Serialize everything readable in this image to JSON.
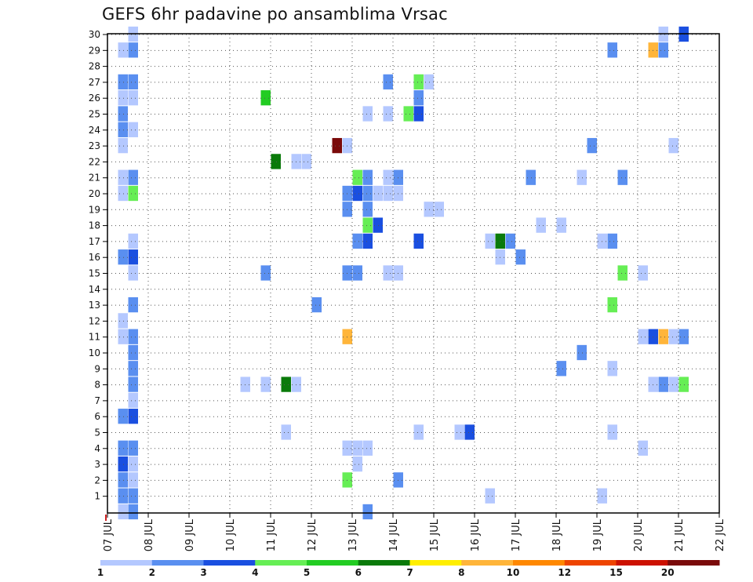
{
  "chart_data": {
    "type": "heatmap",
    "title": "GEFS 6hr padavine po ansamblima Vrsac",
    "xlabel": "",
    "ylabel": "",
    "x_ticks": [
      "07 JUL",
      "08 JUL",
      "09 JUL",
      "10 JUL",
      "11 JUL",
      "12 JUL",
      "13 JUL",
      "14 JUL",
      "15 JUL",
      "16 JUL",
      "17 JUL",
      "18 JUL",
      "19 JUL",
      "20 JUL",
      "21 JUL",
      "22 JUL"
    ],
    "y_ticks": [
      "1",
      "2",
      "3",
      "4",
      "5",
      "6",
      "7",
      "8",
      "9",
      "10",
      "11",
      "12",
      "13",
      "14",
      "15",
      "16",
      "17",
      "18",
      "19",
      "20",
      "21",
      "22",
      "23",
      "24",
      "25",
      "26",
      "27",
      "28",
      "29",
      "30"
    ],
    "x_unit": "days since 07 JUL, 6-hourly",
    "y_range": [
      0,
      30
    ],
    "grid": true,
    "legend": {
      "placement": "bottom",
      "levels": [
        "1",
        "2",
        "3",
        "4",
        "5",
        "6",
        "7",
        "8",
        "10",
        "12",
        "15",
        "20"
      ],
      "colors": [
        "#b4c8ff",
        "#5a8ff0",
        "#1a4fe0",
        "#66ee55",
        "#22cc22",
        "#0a7a0a",
        "#ffee00",
        "#ffb53a",
        "#ff8800",
        "#ee4400",
        "#cc1100",
        "#7a0a0a"
      ]
    },
    "cells": [
      [
        0.25,
        0,
        "#b4c8ff"
      ],
      [
        0.5,
        0,
        "#5a8ff0"
      ],
      [
        0.25,
        1,
        "#5a8ff0"
      ],
      [
        0.5,
        1,
        "#5a8ff0"
      ],
      [
        0.25,
        2,
        "#5a8ff0"
      ],
      [
        0.5,
        2,
        "#b4c8ff"
      ],
      [
        0.25,
        3,
        "#1a4fe0"
      ],
      [
        0.5,
        3,
        "#b4c8ff"
      ],
      [
        0.25,
        4,
        "#5a8ff0"
      ],
      [
        0.5,
        4,
        "#5a8ff0"
      ],
      [
        0.25,
        6,
        "#5a8ff0"
      ],
      [
        0.5,
        6,
        "#1a4fe0"
      ],
      [
        0.5,
        7,
        "#b4c8ff"
      ],
      [
        0.5,
        8,
        "#5a8ff0"
      ],
      [
        0.5,
        9,
        "#5a8ff0"
      ],
      [
        0.5,
        10,
        "#5a8ff0"
      ],
      [
        0.25,
        11,
        "#b4c8ff"
      ],
      [
        0.5,
        11,
        "#5a8ff0"
      ],
      [
        0.25,
        12,
        "#b4c8ff"
      ],
      [
        0.5,
        13,
        "#5a8ff0"
      ],
      [
        0.5,
        15,
        "#b4c8ff"
      ],
      [
        0.25,
        16,
        "#5a8ff0"
      ],
      [
        0.5,
        16,
        "#1a4fe0"
      ],
      [
        0.5,
        17,
        "#b4c8ff"
      ],
      [
        0.25,
        20,
        "#b4c8ff"
      ],
      [
        0.5,
        20,
        "#66ee55"
      ],
      [
        0.25,
        21,
        "#b4c8ff"
      ],
      [
        0.5,
        21,
        "#5a8ff0"
      ],
      [
        0.25,
        23,
        "#b4c8ff"
      ],
      [
        0.25,
        24,
        "#5a8ff0"
      ],
      [
        0.5,
        24,
        "#b4c8ff"
      ],
      [
        0.25,
        25,
        "#5a8ff0"
      ],
      [
        0.25,
        26,
        "#b4c8ff"
      ],
      [
        0.5,
        26,
        "#b4c8ff"
      ],
      [
        0.25,
        27,
        "#5a8ff0"
      ],
      [
        0.5,
        27,
        "#5a8ff0"
      ],
      [
        0.25,
        29,
        "#b4c8ff"
      ],
      [
        0.5,
        29,
        "#5a8ff0"
      ],
      [
        0.5,
        30,
        "#b4c8ff"
      ],
      [
        3.25,
        8,
        "#b4c8ff"
      ],
      [
        3.75,
        8,
        "#b4c8ff"
      ],
      [
        3.75,
        26,
        "#22cc22"
      ],
      [
        3.75,
        15,
        "#5a8ff0"
      ],
      [
        4.0,
        22,
        "#0a7a0a"
      ],
      [
        4.25,
        5,
        "#b4c8ff"
      ],
      [
        4.25,
        8,
        "#0a7a0a"
      ],
      [
        4.5,
        8,
        "#b4c8ff"
      ],
      [
        4.5,
        22,
        "#b4c8ff"
      ],
      [
        4.75,
        22,
        "#b4c8ff"
      ],
      [
        5.0,
        13,
        "#5a8ff0"
      ],
      [
        5.5,
        23,
        "#7a0a0a"
      ],
      [
        5.75,
        23,
        "#b4c8ff"
      ],
      [
        5.75,
        2,
        "#66ee55"
      ],
      [
        5.75,
        4,
        "#b4c8ff"
      ],
      [
        5.75,
        11,
        "#ffb53a"
      ],
      [
        5.75,
        15,
        "#5a8ff0"
      ],
      [
        6.0,
        15,
        "#5a8ff0"
      ],
      [
        5.75,
        19,
        "#5a8ff0"
      ],
      [
        5.75,
        20,
        "#5a8ff0"
      ],
      [
        6.0,
        20,
        "#1a4fe0"
      ],
      [
        6.0,
        21,
        "#66ee55"
      ],
      [
        6.25,
        21,
        "#5a8ff0"
      ],
      [
        6.0,
        17,
        "#5a8ff0"
      ],
      [
        6.25,
        17,
        "#1a4fe0"
      ],
      [
        6.25,
        18,
        "#66ee55"
      ],
      [
        6.5,
        18,
        "#1a4fe0"
      ],
      [
        6.25,
        19,
        "#5a8ff0"
      ],
      [
        6.25,
        20,
        "#5a8ff0"
      ],
      [
        6.5,
        20,
        "#b4c8ff"
      ],
      [
        6.0,
        3,
        "#b4c8ff"
      ],
      [
        6.0,
        4,
        "#b4c8ff"
      ],
      [
        6.25,
        4,
        "#b4c8ff"
      ],
      [
        6.25,
        0,
        "#5a8ff0"
      ],
      [
        6.25,
        25,
        "#b4c8ff"
      ],
      [
        6.75,
        25,
        "#b4c8ff"
      ],
      [
        6.75,
        27,
        "#5a8ff0"
      ],
      [
        6.75,
        15,
        "#b4c8ff"
      ],
      [
        7.0,
        15,
        "#b4c8ff"
      ],
      [
        6.75,
        20,
        "#b4c8ff"
      ],
      [
        7.0,
        20,
        "#b4c8ff"
      ],
      [
        6.75,
        21,
        "#b4c8ff"
      ],
      [
        7.0,
        21,
        "#5a8ff0"
      ],
      [
        7.0,
        2,
        "#5a8ff0"
      ],
      [
        7.5,
        5,
        "#b4c8ff"
      ],
      [
        7.5,
        27,
        "#66ee55"
      ],
      [
        7.75,
        27,
        "#b4c8ff"
      ],
      [
        7.5,
        26,
        "#5a8ff0"
      ],
      [
        7.25,
        25,
        "#66ee55"
      ],
      [
        7.5,
        25,
        "#1a4fe0"
      ],
      [
        7.5,
        17,
        "#1a4fe0"
      ],
      [
        7.75,
        19,
        "#b4c8ff"
      ],
      [
        8.0,
        19,
        "#b4c8ff"
      ],
      [
        8.5,
        5,
        "#b4c8ff"
      ],
      [
        8.75,
        5,
        "#1a4fe0"
      ],
      [
        9.25,
        1,
        "#b4c8ff"
      ],
      [
        9.25,
        17,
        "#b4c8ff"
      ],
      [
        9.5,
        16,
        "#b4c8ff"
      ],
      [
        9.5,
        17,
        "#0a7a0a"
      ],
      [
        9.75,
        17,
        "#5a8ff0"
      ],
      [
        10.0,
        16,
        "#5a8ff0"
      ],
      [
        10.25,
        21,
        "#5a8ff0"
      ],
      [
        10.5,
        18,
        "#b4c8ff"
      ],
      [
        11.0,
        18,
        "#b4c8ff"
      ],
      [
        11.0,
        9,
        "#5a8ff0"
      ],
      [
        11.5,
        10,
        "#5a8ff0"
      ],
      [
        11.5,
        21,
        "#b4c8ff"
      ],
      [
        11.75,
        23,
        "#5a8ff0"
      ],
      [
        12.0,
        1,
        "#b4c8ff"
      ],
      [
        12.0,
        17,
        "#b4c8ff"
      ],
      [
        12.25,
        17,
        "#5a8ff0"
      ],
      [
        12.25,
        5,
        "#b4c8ff"
      ],
      [
        12.25,
        9,
        "#b4c8ff"
      ],
      [
        12.25,
        13,
        "#66ee55"
      ],
      [
        12.25,
        29,
        "#5a8ff0"
      ],
      [
        12.5,
        21,
        "#5a8ff0"
      ],
      [
        12.5,
        15,
        "#66ee55"
      ],
      [
        13.0,
        15,
        "#b4c8ff"
      ],
      [
        13.0,
        4,
        "#b4c8ff"
      ],
      [
        13.0,
        11,
        "#b4c8ff"
      ],
      [
        13.25,
        11,
        "#1a4fe0"
      ],
      [
        13.5,
        11,
        "#ffb53a"
      ],
      [
        13.75,
        11,
        "#b4c8ff"
      ],
      [
        14.0,
        11,
        "#5a8ff0"
      ],
      [
        13.25,
        8,
        "#b4c8ff"
      ],
      [
        13.5,
        8,
        "#5a8ff0"
      ],
      [
        13.75,
        8,
        "#b4c8ff"
      ],
      [
        14.0,
        8,
        "#66ee55"
      ],
      [
        13.25,
        29,
        "#ffb53a"
      ],
      [
        13.5,
        29,
        "#5a8ff0"
      ],
      [
        13.5,
        30,
        "#b4c8ff"
      ],
      [
        13.75,
        23,
        "#b4c8ff"
      ],
      [
        14.0,
        30,
        "#1a4fe0"
      ]
    ]
  }
}
